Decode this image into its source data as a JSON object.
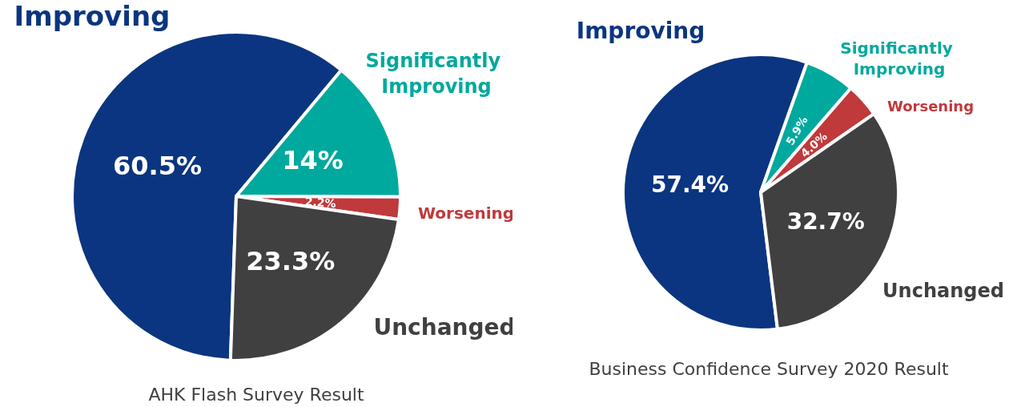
{
  "chart_data": [
    {
      "type": "pie",
      "title": "AHK Flash Survey Result",
      "categories": [
        "Improving",
        "Significantly Improving",
        "Worsening",
        "Unchanged"
      ],
      "values": [
        60.5,
        14,
        2.2,
        23.3
      ],
      "value_labels": [
        "60.5%",
        "14%",
        "2.2%",
        "23.3%"
      ],
      "colors": [
        "#0b3580",
        "#00a99d",
        "#c0393b",
        "#404040"
      ],
      "legend": false
    },
    {
      "type": "pie",
      "title": "Business Confidence Survey 2020 Result",
      "categories": [
        "Improving",
        "Significantly Improving",
        "Worsening",
        "Unchanged"
      ],
      "values": [
        57.4,
        5.9,
        4.0,
        32.7
      ],
      "value_labels": [
        "57.4%",
        "5.9%",
        "4.0%",
        "32.7%"
      ],
      "colors": [
        "#0b3580",
        "#00a99d",
        "#c0393b",
        "#404040"
      ],
      "legend": false
    }
  ]
}
